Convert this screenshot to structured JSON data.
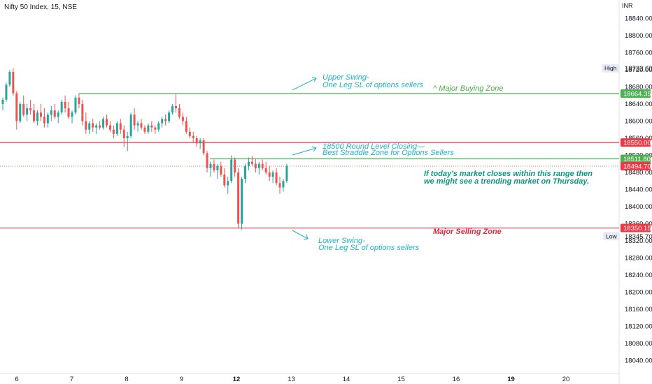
{
  "header": {
    "symbol_title": "Nifty 50 Index, 15, NSE",
    "currency": "INR"
  },
  "chart_data": {
    "type": "candlestick",
    "title": "Nifty 50 Index, 15, NSE",
    "ylabel": "INR",
    "ylim": [
      18010,
      18870
    ],
    "y_ticks": [
      18840,
      18800,
      18760,
      18720,
      18680,
      18640,
      18600,
      18560,
      18520,
      18480,
      18440,
      18400,
      18360,
      18320,
      18280,
      18240,
      18200,
      18160,
      18120,
      18080,
      18040
    ],
    "y_tick_labels": [
      "18840.00",
      "18800.00",
      "18760.00",
      "18720.00",
      "18680.00",
      "18640.00",
      "18600.00",
      "18560.00",
      "18520.00",
      "18480.00",
      "18440.00",
      "18400.00",
      "18360.00",
      "18320.00",
      "18280.00",
      "18240.00",
      "18200.00",
      "18160.00",
      "18120.00",
      "18080.00",
      "18040.00"
    ],
    "x_labels": [
      {
        "label": "6",
        "slot": 0,
        "bold": false
      },
      {
        "label": "7",
        "slot": 1,
        "bold": false
      },
      {
        "label": "8",
        "slot": 2,
        "bold": false
      },
      {
        "label": "9",
        "slot": 3,
        "bold": false
      },
      {
        "label": "12",
        "slot": 4,
        "bold": true
      },
      {
        "label": "13",
        "slot": 5,
        "bold": false
      },
      {
        "label": "14",
        "slot": 6,
        "bold": false
      },
      {
        "label": "15",
        "slot": 7,
        "bold": false
      },
      {
        "label": "16",
        "slot": 8,
        "bold": false
      },
      {
        "label": "19",
        "slot": 9,
        "bold": true
      },
      {
        "label": "20",
        "slot": 10,
        "bold": false
      }
    ],
    "levels": [
      {
        "name": "upper-swing",
        "value": 18664.35,
        "label": "18664.35",
        "color": "#4caf50",
        "style": "solid"
      },
      {
        "name": "round-level",
        "value": 18550.0,
        "label": "18550.00",
        "color": "#f23645",
        "style": "solid"
      },
      {
        "name": "straddle",
        "value": 18511.8,
        "label": "18511.80",
        "color": "#4caf50",
        "style": "solid"
      },
      {
        "name": "last-price",
        "value": 18494.7,
        "label": "18494.70",
        "color": "#f23645",
        "style": "dotted"
      },
      {
        "name": "lower-swing",
        "value": 18350.15,
        "label": "18350.15",
        "color": "#f23645",
        "style": "solid"
      }
    ],
    "high": {
      "tag": "High",
      "value": "18723.60"
    },
    "low": {
      "tag": "Low",
      "value": "18345.70"
    },
    "ohlc": [
      [
        18640,
        18655,
        18625,
        18650
      ],
      [
        18650,
        18690,
        18645,
        18685
      ],
      [
        18685,
        18720,
        18680,
        18715
      ],
      [
        18715,
        18724,
        18660,
        18665
      ],
      [
        18665,
        18670,
        18580,
        18600
      ],
      [
        18600,
        18645,
        18595,
        18640
      ],
      [
        18640,
        18660,
        18610,
        18615
      ],
      [
        18615,
        18640,
        18600,
        18630
      ],
      [
        18630,
        18650,
        18615,
        18625
      ],
      [
        18625,
        18640,
        18595,
        18600
      ],
      [
        18600,
        18625,
        18590,
        18620
      ],
      [
        18620,
        18640,
        18600,
        18610
      ],
      [
        18610,
        18630,
        18585,
        18595
      ],
      [
        18595,
        18620,
        18585,
        18615
      ],
      [
        18615,
        18635,
        18600,
        18625
      ],
      [
        18625,
        18640,
        18605,
        18610
      ],
      [
        18610,
        18625,
        18595,
        18620
      ],
      [
        18620,
        18650,
        18615,
        18645
      ],
      [
        18645,
        18660,
        18620,
        18630
      ],
      [
        18630,
        18645,
        18605,
        18610
      ],
      [
        18610,
        18625,
        18595,
        18620
      ],
      [
        18620,
        18660,
        18615,
        18655
      ],
      [
        18655,
        18665,
        18630,
        18640
      ],
      [
        18640,
        18650,
        18590,
        18600
      ],
      [
        18600,
        18620,
        18570,
        18580
      ],
      [
        18580,
        18600,
        18570,
        18595
      ],
      [
        18595,
        18605,
        18575,
        18585
      ],
      [
        18585,
        18595,
        18570,
        18590
      ],
      [
        18590,
        18600,
        18580,
        18585
      ],
      [
        18585,
        18610,
        18580,
        18605
      ],
      [
        18605,
        18615,
        18585,
        18590
      ],
      [
        18590,
        18600,
        18575,
        18580
      ],
      [
        18580,
        18590,
        18560,
        18570
      ],
      [
        18570,
        18600,
        18565,
        18595
      ],
      [
        18595,
        18605,
        18570,
        18580
      ],
      [
        18580,
        18590,
        18540,
        18560
      ],
      [
        18560,
        18575,
        18530,
        18565
      ],
      [
        18565,
        18620,
        18560,
        18615
      ],
      [
        18615,
        18630,
        18580,
        18590
      ],
      [
        18590,
        18600,
        18575,
        18595
      ],
      [
        18595,
        18605,
        18580,
        18585
      ],
      [
        18585,
        18590,
        18570,
        18575
      ],
      [
        18575,
        18595,
        18570,
        18590
      ],
      [
        18590,
        18600,
        18575,
        18585
      ],
      [
        18585,
        18590,
        18570,
        18580
      ],
      [
        18580,
        18600,
        18575,
        18595
      ],
      [
        18595,
        18610,
        18585,
        18605
      ],
      [
        18605,
        18615,
        18590,
        18600
      ],
      [
        18600,
        18625,
        18595,
        18620
      ],
      [
        18620,
        18640,
        18615,
        18635
      ],
      [
        18635,
        18664,
        18620,
        18630
      ],
      [
        18630,
        18640,
        18605,
        18610
      ],
      [
        18610,
        18620,
        18590,
        18600
      ],
      [
        18600,
        18610,
        18570,
        18575
      ],
      [
        18575,
        18585,
        18560,
        18565
      ],
      [
        18565,
        18575,
        18550,
        18560
      ],
      [
        18560,
        18565,
        18540,
        18548
      ],
      [
        18548,
        18560,
        18535,
        18555
      ],
      [
        18555,
        18560,
        18520,
        18525
      ],
      [
        18525,
        18530,
        18480,
        18490
      ],
      [
        18490,
        18505,
        18470,
        18500
      ],
      [
        18500,
        18510,
        18480,
        18485
      ],
      [
        18485,
        18500,
        18465,
        18495
      ],
      [
        18495,
        18505,
        18470,
        18475
      ],
      [
        18475,
        18490,
        18445,
        18450
      ],
      [
        18450,
        18470,
        18430,
        18460
      ],
      [
        18460,
        18520,
        18455,
        18510
      ],
      [
        18510,
        18515,
        18470,
        18480
      ],
      [
        18480,
        18490,
        18350,
        18360
      ],
      [
        18360,
        18470,
        18346,
        18465
      ],
      [
        18465,
        18500,
        18455,
        18495
      ],
      [
        18495,
        18515,
        18485,
        18505
      ],
      [
        18505,
        18518,
        18495,
        18500
      ],
      [
        18500,
        18512,
        18480,
        18490
      ],
      [
        18490,
        18505,
        18475,
        18500
      ],
      [
        18500,
        18510,
        18485,
        18490
      ],
      [
        18490,
        18505,
        18475,
        18480
      ],
      [
        18480,
        18495,
        18460,
        18470
      ],
      [
        18470,
        18485,
        18455,
        18480
      ],
      [
        18480,
        18490,
        18450,
        18455
      ],
      [
        18455,
        18470,
        18430,
        18445
      ],
      [
        18445,
        18465,
        18435,
        18460
      ],
      [
        18460,
        18500,
        18455,
        18495
      ]
    ]
  },
  "annotations": {
    "upper_swing_line1": "Upper Swing-",
    "upper_swing_line2": "One Leg SL of options sellers",
    "major_buying": "^ Major Buying Zone",
    "round_level_line1": "18500 Round Level Closing—",
    "round_level_line2": "Best Straddle Zone for Options Sellers",
    "trend_note_line1": "If today's market closes within this range then",
    "trend_note_line2": "we might see a trending market on Thursday.",
    "major_selling": "Major Selling Zone",
    "lower_swing_line1": "Lower Swing-",
    "lower_swing_line2": "One Leg SL of options sellers"
  },
  "colors": {
    "up": "#26a69a",
    "down": "#ef5350",
    "green_level": "#4caf50",
    "red_level": "#f23645",
    "annotation_teal": "#1cb5c9",
    "annotation_green": "#089981",
    "annotation_red": "#e02c3e"
  }
}
